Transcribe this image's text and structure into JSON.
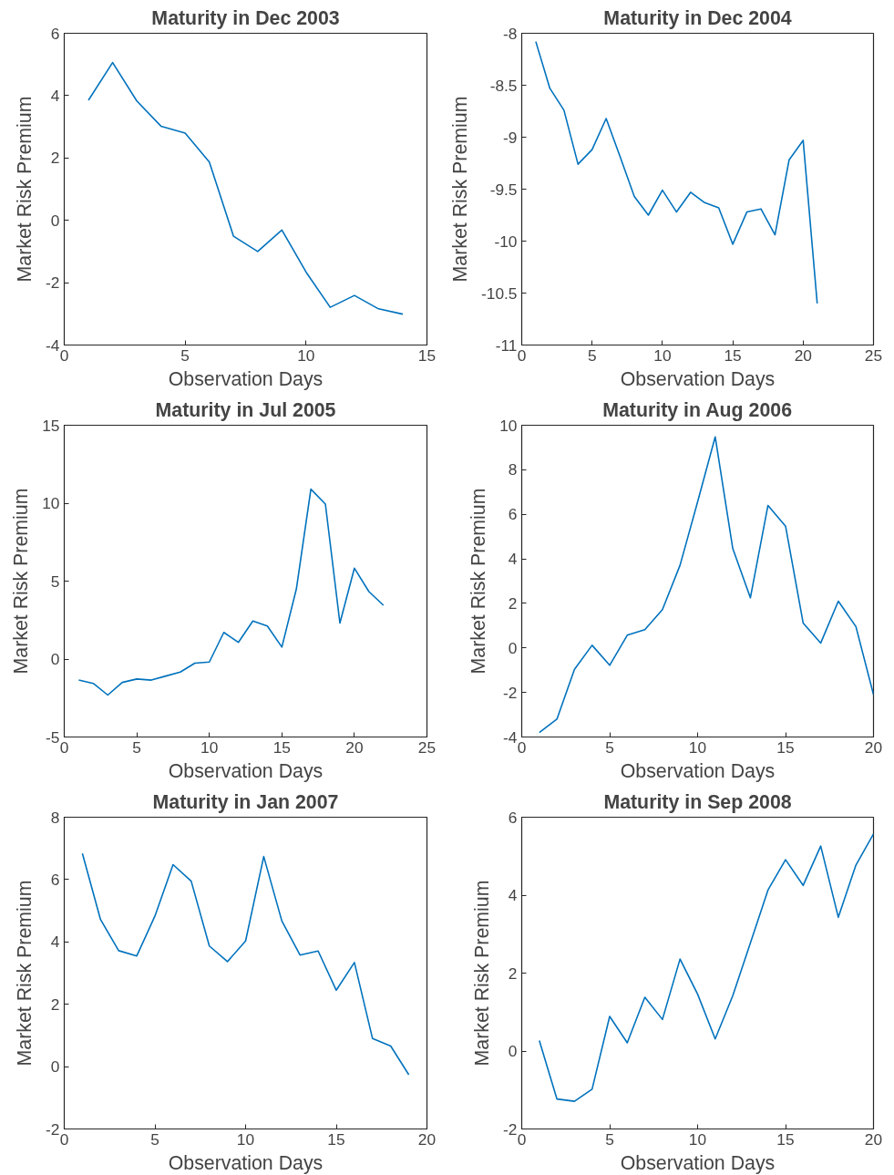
{
  "chart_data": [
    {
      "type": "line",
      "title": "Maturity in Dec 2003",
      "xlabel": "Observation Days",
      "ylabel": "Market Risk Premium",
      "grid": false,
      "xlim": [
        0,
        15
      ],
      "xticks": [
        0,
        5,
        10,
        15
      ],
      "ylim": [
        -4,
        6
      ],
      "yticks": [
        -4,
        -2,
        0,
        2,
        4,
        6
      ],
      "x": [
        1,
        2,
        3,
        4,
        5,
        6,
        7,
        8,
        9,
        10,
        11,
        12,
        13,
        14
      ],
      "series": [
        {
          "color": "#0072bd",
          "values": [
            3.85,
            5.06,
            3.83,
            3.02,
            2.8,
            1.87,
            -0.51,
            -1.0,
            -0.31,
            -1.66,
            -2.79,
            -2.41,
            -2.84,
            -3.01
          ]
        }
      ]
    },
    {
      "type": "line",
      "title": "Maturity in Dec 2004",
      "xlabel": "Observation Days",
      "ylabel": "Market Risk Premium",
      "grid": false,
      "xlim": [
        0,
        25
      ],
      "xticks": [
        0,
        5,
        10,
        15,
        20,
        25
      ],
      "ylim": [
        -11,
        -8
      ],
      "yticks": [
        -11,
        -10.5,
        -10,
        -9.5,
        -9,
        -8.5,
        -8
      ],
      "x": [
        1,
        2,
        3,
        4,
        5,
        6,
        7,
        8,
        9,
        10,
        11,
        12,
        13,
        14,
        15,
        16,
        17,
        18,
        19,
        20,
        21
      ],
      "series": [
        {
          "color": "#0072bd",
          "values": [
            -8.08,
            -8.53,
            -8.74,
            -9.26,
            -9.12,
            -8.82,
            -9.19,
            -9.57,
            -9.75,
            -9.51,
            -9.72,
            -9.53,
            -9.63,
            -9.68,
            -10.03,
            -9.72,
            -9.69,
            -9.94,
            -9.22,
            -9.03,
            -10.6
          ]
        }
      ]
    },
    {
      "type": "line",
      "title": "Maturity in Jul 2005",
      "xlabel": "Observation Days",
      "ylabel": "Market Risk Premium",
      "grid": false,
      "xlim": [
        0,
        25
      ],
      "xticks": [
        0,
        5,
        10,
        15,
        20,
        25
      ],
      "ylim": [
        -5,
        15
      ],
      "yticks": [
        -5,
        0,
        5,
        10,
        15
      ],
      "x": [
        1,
        2,
        3,
        4,
        5,
        6,
        7,
        8,
        9,
        10,
        11,
        12,
        13,
        14,
        15,
        16,
        17,
        18,
        19,
        20,
        21,
        22
      ],
      "series": [
        {
          "color": "#0072bd",
          "values": [
            -1.35,
            -1.56,
            -2.31,
            -1.5,
            -1.28,
            -1.35,
            -1.09,
            -0.83,
            -0.26,
            -0.19,
            1.71,
            1.07,
            2.44,
            2.12,
            0.77,
            4.5,
            10.9,
            9.94,
            2.31,
            5.83,
            4.33,
            3.45
          ]
        }
      ]
    },
    {
      "type": "line",
      "title": "Maturity in Aug 2006",
      "xlabel": "Observation Days",
      "ylabel": "Market Risk Premium",
      "grid": false,
      "xlim": [
        0,
        20
      ],
      "xticks": [
        0,
        5,
        10,
        15,
        20
      ],
      "ylim": [
        -4,
        10
      ],
      "yticks": [
        -4,
        -2,
        0,
        2,
        4,
        6,
        8,
        10
      ],
      "x": [
        1,
        2,
        3,
        4,
        5,
        6,
        7,
        8,
        9,
        10,
        11,
        12,
        13,
        14,
        15,
        16,
        17,
        18,
        19,
        20
      ],
      "series": [
        {
          "color": "#0072bd",
          "values": [
            -3.8,
            -3.2,
            -0.96,
            0.12,
            -0.78,
            0.57,
            0.82,
            1.72,
            3.71,
            6.56,
            9.48,
            4.46,
            2.25,
            6.4,
            5.47,
            1.12,
            0.22,
            2.1,
            0.96,
            -2.1
          ]
        }
      ]
    },
    {
      "type": "line",
      "title": "Maturity in Jan 2007",
      "xlabel": "Observation Days",
      "ylabel": "Market Risk Premium",
      "grid": false,
      "xlim": [
        0,
        20
      ],
      "xticks": [
        0,
        5,
        10,
        15,
        20
      ],
      "ylim": [
        -2,
        8
      ],
      "yticks": [
        -2,
        0,
        2,
        4,
        6,
        8
      ],
      "x": [
        1,
        2,
        3,
        4,
        5,
        6,
        7,
        8,
        9,
        10,
        11,
        12,
        13,
        14,
        15,
        16,
        17,
        18,
        19
      ],
      "series": [
        {
          "color": "#0072bd",
          "values": [
            6.84,
            4.72,
            3.72,
            3.55,
            4.83,
            6.48,
            5.95,
            3.87,
            3.37,
            4.03,
            6.74,
            4.67,
            3.58,
            3.71,
            2.45,
            3.34,
            0.9,
            0.66,
            -0.26
          ]
        }
      ]
    },
    {
      "type": "line",
      "title": "Maturity in Sep 2008",
      "xlabel": "Observation Days",
      "ylabel": "Market Risk Premium",
      "grid": false,
      "xlim": [
        0,
        20
      ],
      "xticks": [
        0,
        5,
        10,
        15,
        20
      ],
      "ylim": [
        -2,
        6
      ],
      "yticks": [
        -2,
        0,
        2,
        4,
        6
      ],
      "x": [
        1,
        2,
        3,
        4,
        5,
        6,
        7,
        8,
        9,
        10,
        11,
        12,
        13,
        14,
        15,
        16,
        17,
        18,
        19,
        20
      ],
      "series": [
        {
          "color": "#0072bd",
          "values": [
            0.27,
            -1.23,
            -1.29,
            -0.98,
            0.89,
            0.21,
            1.38,
            0.81,
            2.36,
            1.46,
            0.31,
            1.42,
            2.77,
            4.13,
            4.91,
            4.25,
            5.26,
            3.43,
            4.77,
            5.57
          ]
        }
      ]
    }
  ]
}
